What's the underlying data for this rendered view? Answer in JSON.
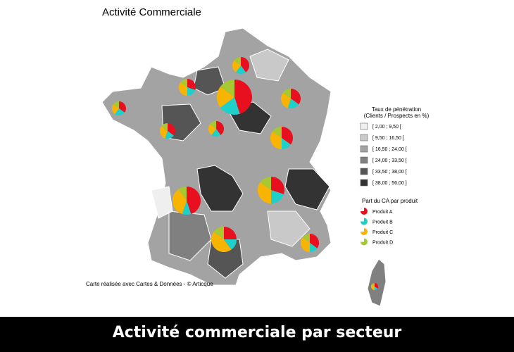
{
  "map": {
    "title": "Activité Commerciale",
    "credit": "Carte réalisée avec Cartes & Données - © Articque",
    "penetration_legend": {
      "title_lines": [
        "Taux de pénétration",
        "(Clients / Prospects en %)"
      ],
      "classes": [
        {
          "label": "[ 2,00 ; 9,50 [",
          "color": "#efefef"
        },
        {
          "label": "[ 9,50 ; 16,50 [",
          "color": "#c9c9c9"
        },
        {
          "label": "[ 16,50 ; 24,00 [",
          "color": "#a3a3a3"
        },
        {
          "label": "[ 24,00 ; 33,50 [",
          "color": "#808080"
        },
        {
          "label": "[ 33,50 ; 38,00 [",
          "color": "#555555"
        },
        {
          "label": "[ 38,00 ; 56,00 ]",
          "color": "#333333"
        }
      ]
    },
    "product_legend": {
      "title": "Part du CA par produit",
      "products": [
        {
          "name": "Produit A",
          "color": "#e8101e"
        },
        {
          "name": "Produit B",
          "color": "#1fcfc9"
        },
        {
          "name": "Produit C",
          "color": "#f8b400"
        },
        {
          "name": "Produit D",
          "color": "#a8c832"
        }
      ]
    },
    "pies": [
      {
        "shares": [
          40,
          20,
          25,
          15
        ]
      },
      {
        "shares": [
          45,
          20,
          20,
          15
        ]
      },
      {
        "shares": [
          30,
          20,
          35,
          15
        ]
      },
      {
        "shares": [
          35,
          25,
          25,
          15
        ]
      },
      {
        "shares": [
          35,
          20,
          30,
          15
        ]
      },
      {
        "shares": [
          35,
          20,
          30,
          15
        ]
      },
      {
        "shares": [
          40,
          20,
          25,
          15
        ]
      },
      {
        "shares": [
          35,
          15,
          35,
          15
        ]
      },
      {
        "shares": [
          30,
          20,
          35,
          15
        ]
      },
      {
        "shares": [
          45,
          10,
          35,
          10
        ]
      },
      {
        "shares": [
          25,
          15,
          45,
          15
        ]
      },
      {
        "shares": [
          35,
          15,
          35,
          15
        ]
      },
      {
        "shares": [
          35,
          15,
          35,
          15
        ]
      }
    ]
  },
  "caption": "Activité commerciale par secteur"
}
